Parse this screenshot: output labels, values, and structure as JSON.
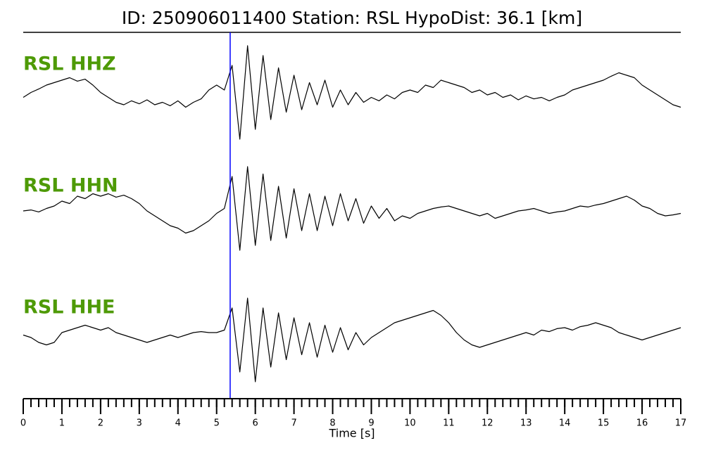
{
  "chart_data": {
    "type": "line",
    "title": "ID: 250906011400   Station: RSL   HypoDist:    36.1 [km]",
    "x_label": "Time [s]",
    "xlim": [
      0,
      17
    ],
    "xticks": [
      0,
      1,
      2,
      3,
      4,
      5,
      6,
      7,
      8,
      9,
      10,
      11,
      12,
      13,
      14,
      15,
      16,
      17
    ],
    "minor_tick_step": 0.2,
    "ylim": [
      -1,
      1
    ],
    "label_color": "#4e9a06",
    "pick": {
      "x": 5.35,
      "color": "#0000ff"
    },
    "x": [
      0,
      0.2,
      0.4,
      0.6,
      0.8,
      1,
      1.2,
      1.4,
      1.6,
      1.8,
      2,
      2.2,
      2.4,
      2.6,
      2.8,
      3,
      3.2,
      3.4,
      3.6,
      3.8,
      4,
      4.2,
      4.4,
      4.6,
      4.8,
      5,
      5.2,
      5.4,
      5.6,
      5.8,
      6,
      6.2,
      6.4,
      6.6,
      6.8,
      7,
      7.2,
      7.4,
      7.6,
      7.8,
      8,
      8.2,
      8.4,
      8.6,
      8.8,
      9,
      9.2,
      9.4,
      9.6,
      9.8,
      10,
      10.2,
      10.4,
      10.6,
      10.8,
      11,
      11.2,
      11.4,
      11.6,
      11.8,
      12,
      12.2,
      12.4,
      12.6,
      12.8,
      13,
      13.2,
      13.4,
      13.6,
      13.8,
      14,
      14.2,
      14.4,
      14.6,
      14.8,
      15,
      15.2,
      15.4,
      15.6,
      15.8,
      16,
      16.2,
      16.4,
      16.6,
      16.8,
      17
    ],
    "series": [
      {
        "name": "RSL HHZ",
        "color": "#000000",
        "values": [
          -0.05,
          0.05,
          0.12,
          0.2,
          0.25,
          0.3,
          0.35,
          0.28,
          0.32,
          0.2,
          0.05,
          -0.05,
          -0.15,
          -0.2,
          -0.12,
          -0.18,
          -0.1,
          -0.2,
          -0.15,
          -0.22,
          -0.12,
          -0.25,
          -0.15,
          -0.08,
          0.1,
          0.2,
          0.1,
          0.6,
          -0.9,
          1.0,
          -0.7,
          0.8,
          -0.5,
          0.55,
          -0.35,
          0.4,
          -0.3,
          0.25,
          -0.2,
          0.3,
          -0.25,
          0.1,
          -0.2,
          0.05,
          -0.15,
          -0.05,
          -0.12,
          0,
          -0.08,
          0.05,
          0.1,
          0.05,
          0.2,
          0.15,
          0.3,
          0.25,
          0.2,
          0.15,
          0.05,
          0.1,
          0,
          0.05,
          -0.05,
          0,
          -0.1,
          -0.02,
          -0.08,
          -0.05,
          -0.12,
          -0.05,
          0,
          0.1,
          0.15,
          0.2,
          0.25,
          0.3,
          0.38,
          0.45,
          0.4,
          0.35,
          0.2,
          0.1,
          0,
          -0.1,
          -0.2,
          -0.25
        ]
      },
      {
        "name": "RSL HHN",
        "color": "#000000",
        "values": [
          0,
          0.02,
          -0.02,
          0.05,
          0.1,
          0.2,
          0.15,
          0.3,
          0.25,
          0.35,
          0.3,
          0.35,
          0.28,
          0.32,
          0.25,
          0.15,
          0,
          -0.1,
          -0.2,
          -0.3,
          -0.35,
          -0.45,
          -0.4,
          -0.3,
          -0.2,
          -0.05,
          0.05,
          0.7,
          -0.8,
          0.9,
          -0.7,
          0.75,
          -0.6,
          0.5,
          -0.55,
          0.45,
          -0.4,
          0.35,
          -0.4,
          0.3,
          -0.3,
          0.35,
          -0.2,
          0.25,
          -0.25,
          0.1,
          -0.15,
          0.05,
          -0.2,
          -0.1,
          -0.15,
          -0.05,
          0,
          0.05,
          0.08,
          0.1,
          0.05,
          0,
          -0.05,
          -0.1,
          -0.05,
          -0.15,
          -0.1,
          -0.05,
          0,
          0.02,
          0.05,
          0,
          -0.05,
          -0.02,
          0,
          0.05,
          0.1,
          0.08,
          0.12,
          0.15,
          0.2,
          0.25,
          0.3,
          0.22,
          0.1,
          0.05,
          -0.05,
          -0.1,
          -0.08,
          -0.05
        ]
      },
      {
        "name": "RSL HHE",
        "color": "#000000",
        "values": [
          0.05,
          0,
          -0.1,
          -0.15,
          -0.1,
          0.1,
          0.15,
          0.2,
          0.25,
          0.2,
          0.15,
          0.2,
          0.1,
          0.05,
          0,
          -0.05,
          -0.1,
          -0.05,
          0,
          0.05,
          0,
          0.05,
          0.1,
          0.12,
          0.1,
          0.1,
          0.15,
          0.6,
          -0.7,
          0.8,
          -0.9,
          0.6,
          -0.6,
          0.5,
          -0.45,
          0.4,
          -0.35,
          0.3,
          -0.4,
          0.25,
          -0.3,
          0.2,
          -0.25,
          0.1,
          -0.15,
          0,
          0.1,
          0.2,
          0.3,
          0.35,
          0.4,
          0.45,
          0.5,
          0.55,
          0.45,
          0.3,
          0.1,
          -0.05,
          -0.15,
          -0.2,
          -0.15,
          -0.1,
          -0.05,
          0,
          0.05,
          0.1,
          0.05,
          0.15,
          0.12,
          0.18,
          0.2,
          0.15,
          0.22,
          0.25,
          0.3,
          0.25,
          0.2,
          0.1,
          0.05,
          0,
          -0.05,
          0,
          0.05,
          0.1,
          0.15,
          0.2
        ]
      }
    ]
  }
}
